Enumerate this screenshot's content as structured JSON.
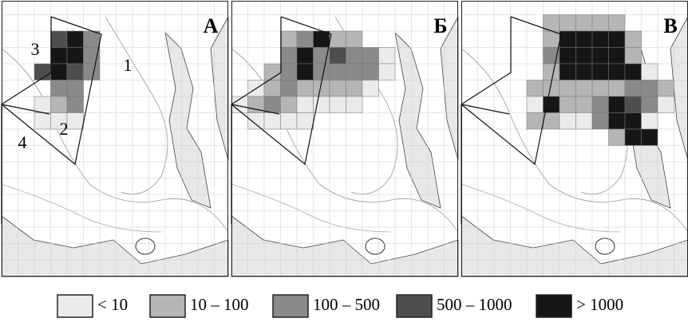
{
  "panels": [
    {
      "label": "А"
    },
    {
      "label": "Б"
    },
    {
      "label": "В"
    }
  ],
  "regions": [
    "1",
    "2",
    "3",
    "4"
  ],
  "legend": [
    {
      "label": "< 10",
      "color": "#ebebeb"
    },
    {
      "label": "10 – 100",
      "color": "#b5b5b5"
    },
    {
      "label": "100 – 500",
      "color": "#8a8a8a"
    },
    {
      "label": "500 – 1000",
      "color": "#4e4e4e"
    },
    {
      "label": "> 1000",
      "color": "#161616"
    }
  ]
}
